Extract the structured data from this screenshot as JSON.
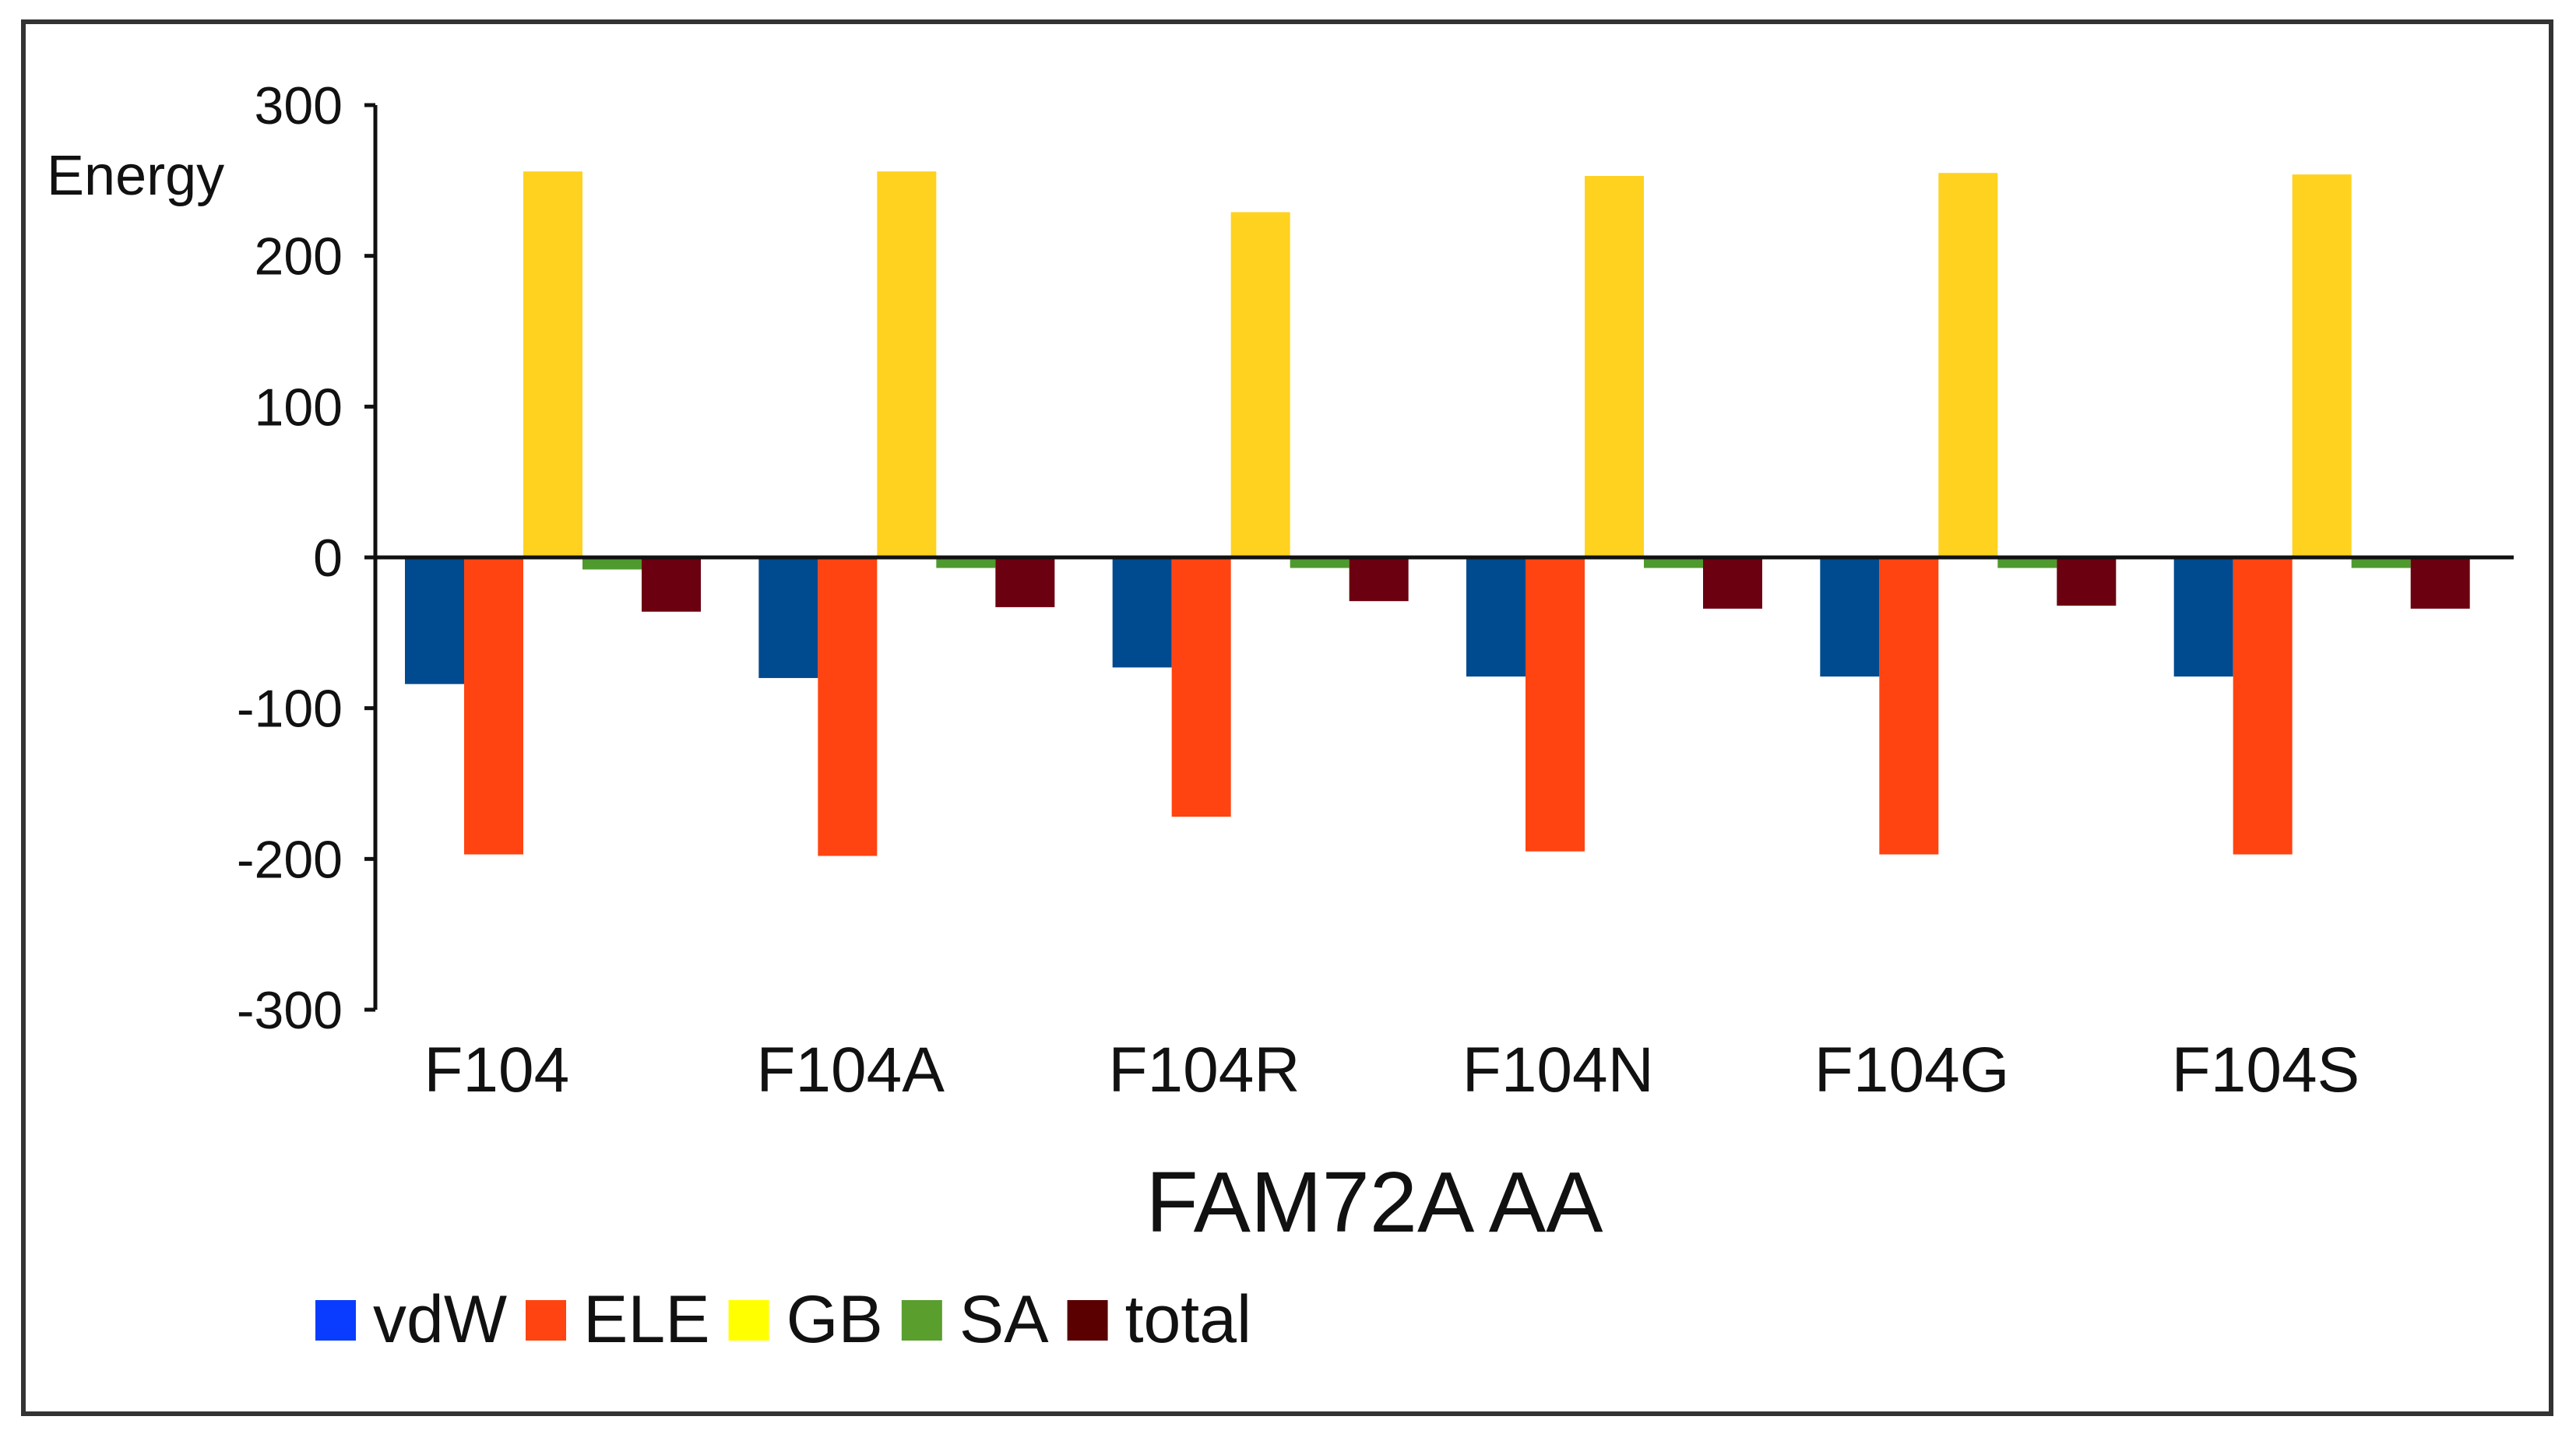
{
  "chart_data": {
    "type": "bar",
    "title": "",
    "xlabel": "FAM72A  AA",
    "ylabel": "Energy",
    "ylim": [
      -300,
      300
    ],
    "yticks": [
      300,
      200,
      100,
      0,
      -100,
      -200,
      -300
    ],
    "grid": false,
    "legend_position": "bottom-left",
    "categories": [
      "F104",
      "F104A",
      "F104R",
      "F104N",
      "F104G",
      "F104S"
    ],
    "series": [
      {
        "name": "vdW",
        "color": "#004a8f",
        "legend_color": "#0a3cff",
        "values": [
          -84,
          -80,
          -73,
          -79,
          -79,
          -79
        ]
      },
      {
        "name": "ELE",
        "color": "#ff4411",
        "legend_color": "#ff4411",
        "values": [
          -197,
          -198,
          -172,
          -195,
          -197,
          -197
        ]
      },
      {
        "name": "GB",
        "color": "#ffd21f",
        "legend_color": "#ffff00",
        "values": [
          256,
          256,
          229,
          253,
          255,
          254
        ]
      },
      {
        "name": "SA",
        "color": "#4f9a2e",
        "legend_color": "#5a9e2e",
        "values": [
          -8,
          -7,
          -7,
          -7,
          -7,
          -7
        ]
      },
      {
        "name": "total",
        "color": "#6b0010",
        "legend_color": "#5a0000",
        "values": [
          -36,
          -33,
          -29,
          -34,
          -32,
          -34
        ]
      }
    ]
  }
}
